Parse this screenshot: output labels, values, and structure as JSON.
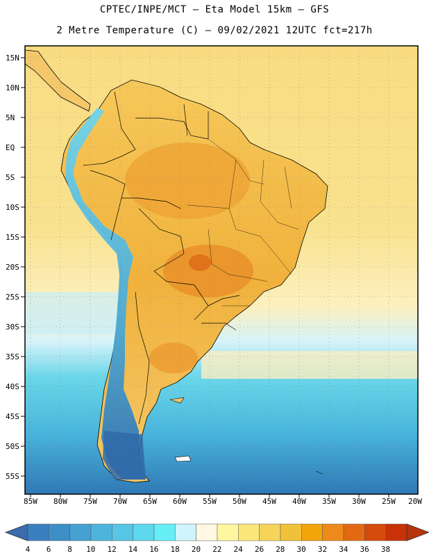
{
  "header": {
    "line1": "CPTEC/INPE/MCT –  Eta Model 15km – GFS",
    "line2": "2 Metre Temperature (C) – 09/02/2021 12UTC fct=217h"
  },
  "axes": {
    "lat_labels": [
      "15N",
      "10N",
      "5N",
      "EQ",
      "5S",
      "10S",
      "15S",
      "20S",
      "25S",
      "30S",
      "35S",
      "40S",
      "45S",
      "50S",
      "55S"
    ],
    "lon_labels": [
      "85W",
      "80W",
      "75W",
      "70W",
      "65W",
      "60W",
      "55W",
      "50W",
      "45W",
      "40W",
      "35W",
      "30W",
      "25W",
      "20W"
    ]
  },
  "colorbar": {
    "labels": [
      "4",
      "6",
      "8",
      "10",
      "12",
      "14",
      "16",
      "18",
      "20",
      "22",
      "24",
      "26",
      "28",
      "30",
      "32",
      "34",
      "36",
      "38"
    ],
    "colors": [
      "#3a7fc0",
      "#3e8ec8",
      "#45a1d2",
      "#4eb4dc",
      "#58c6e6",
      "#5fd8ee",
      "#66eef6",
      "#d0f4fb",
      "#fff8e2",
      "#fff7a0",
      "#fbe67c",
      "#f6d45a",
      "#f0c23a",
      "#f3a50c",
      "#ee8a1a",
      "#e36a12",
      "#d44b0c",
      "#c93208"
    ]
  },
  "map": {
    "ocean_gradient": [
      "#f9dc82",
      "#f8e08c",
      "#fbeeb4",
      "#d6f3fa",
      "#6ad6e8",
      "#4ab6dc",
      "#2f78b6"
    ],
    "land_color": "#f3bd4a",
    "hot_color": "#e9942a",
    "andes_color": "#4fb4d8"
  }
}
